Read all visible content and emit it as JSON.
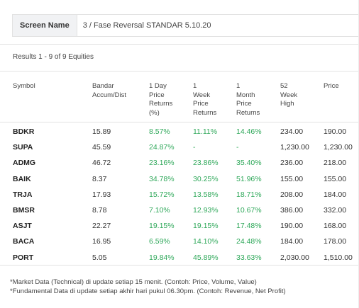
{
  "screen": {
    "label": "Screen Name",
    "value": "3 / Fase Reversal STANDAR 5.10.20"
  },
  "results_text": "Results 1 - 9 of 9 Equities",
  "columns": [
    {
      "label": "Symbol"
    },
    {
      "label": "Bandar\nAccum/Dist"
    },
    {
      "label": "1 Day\nPrice\nReturns\n(%)"
    },
    {
      "label": "1\nWeek\nPrice\nReturns"
    },
    {
      "label": "1\nMonth\nPrice\nReturns"
    },
    {
      "label": "52\nWeek\nHigh"
    },
    {
      "label": "Price"
    }
  ],
  "rows": [
    {
      "symbol": "BDKR",
      "bandar": "15.89",
      "d1": "8.57%",
      "w1": "11.11%",
      "m1": "14.46%",
      "high52": "234.00",
      "price": "190.00"
    },
    {
      "symbol": "SUPA",
      "bandar": "45.59",
      "d1": "24.87%",
      "w1": "-",
      "m1": "-",
      "high52": "1,230.00",
      "price": "1,230.00"
    },
    {
      "symbol": "ADMG",
      "bandar": "46.72",
      "d1": "23.16%",
      "w1": "23.86%",
      "m1": "35.40%",
      "high52": "236.00",
      "price": "218.00"
    },
    {
      "symbol": "BAIK",
      "bandar": "8.37",
      "d1": "34.78%",
      "w1": "30.25%",
      "m1": "51.96%",
      "high52": "155.00",
      "price": "155.00"
    },
    {
      "symbol": "TRJA",
      "bandar": "17.93",
      "d1": "15.72%",
      "w1": "13.58%",
      "m1": "18.71%",
      "high52": "208.00",
      "price": "184.00"
    },
    {
      "symbol": "BMSR",
      "bandar": "8.78",
      "d1": "7.10%",
      "w1": "12.93%",
      "m1": "10.67%",
      "high52": "386.00",
      "price": "332.00"
    },
    {
      "symbol": "ASJT",
      "bandar": "22.27",
      "d1": "19.15%",
      "w1": "19.15%",
      "m1": "17.48%",
      "high52": "190.00",
      "price": "168.00"
    },
    {
      "symbol": "BACA",
      "bandar": "16.95",
      "d1": "6.59%",
      "w1": "14.10%",
      "m1": "24.48%",
      "high52": "184.00",
      "price": "178.00"
    },
    {
      "symbol": "PORT",
      "bandar": "5.05",
      "d1": "19.84%",
      "w1": "45.89%",
      "m1": "33.63%",
      "high52": "2,030.00",
      "price": "1,510.00"
    }
  ],
  "footnotes": [
    "*Market Data (Technical) di update setiap 15 menit. (Contoh: Price, Volume, Value)",
    "*Fundamental Data di update setiap akhir hari pukul 06.30pm. (Contoh: Revenue, Net Profit)"
  ],
  "colors": {
    "positive": "#2fa85a",
    "header_bg": "#f1f2f4",
    "border": "#e2e2e2"
  }
}
